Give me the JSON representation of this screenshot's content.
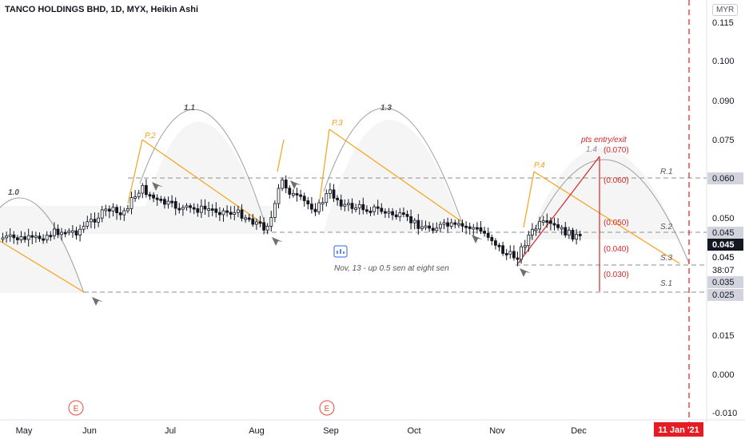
{
  "title": "TANCO HOLDINGS BHD, 1D, MYX, Heikin Ashi",
  "currency": "MYR",
  "colors": {
    "up": "#ffffff",
    "down": "#131722",
    "orange": "#f7a21b",
    "arc": "#9e9e9e",
    "red": "#d62728",
    "dashed": "#8f8f8f",
    "vline": "#e51c23",
    "gray_tag": "#d1d4dc"
  },
  "chart_data": {
    "type": "candlestick",
    "title": "TANCO HOLDINGS BHD, 1D, MYX, Heikin Ashi",
    "ylim": [
      -0.012,
      0.12
    ],
    "y_ticks": [
      "0.115",
      "0.100",
      "0.090",
      "0.075",
      "0.050",
      "0.045",
      "0.015",
      "0.000",
      "-0.010"
    ],
    "x_ticks": [
      "May",
      "Jun",
      "Jul",
      "Aug",
      "Sep",
      "Oct",
      "Nov",
      "Dec"
    ],
    "price_tags": [
      {
        "label": "0.060",
        "value": 0.06,
        "style": "gray"
      },
      {
        "label": "0.045",
        "value": 0.0488,
        "style": "gray"
      },
      {
        "label": "0.045",
        "value": 0.045,
        "style": "dark"
      },
      {
        "label": "0.045",
        "value": 0.0415,
        "style": "plain"
      },
      {
        "label": "38:07",
        "value": 0.0375,
        "style": "plain"
      },
      {
        "label": "0.035",
        "value": 0.0345,
        "style": "gray"
      },
      {
        "label": "0.025",
        "value": 0.03,
        "style": "gray"
      }
    ],
    "levels": [
      {
        "name": "R.1",
        "value": 0.06
      },
      {
        "name": "S.2",
        "value": 0.045
      },
      {
        "name": "S.3",
        "value": 0.04
      },
      {
        "name": "S.1",
        "value": 0.025
      }
    ],
    "pattern_labels": [
      "1.0",
      "1.1",
      "1.3",
      "1.4",
      "P.2",
      "P.3",
      "P.4"
    ],
    "annotation": "Nov, 13 - up 0.5 sen at eight sen",
    "pts_label": "pts entry/exit",
    "pts_levels": [
      "(0.070)",
      "(0.060)",
      "(0.050)",
      "(0.040)",
      "(0.030)"
    ],
    "earnings_marker": "E",
    "date_tag": "11 Jan '21"
  }
}
